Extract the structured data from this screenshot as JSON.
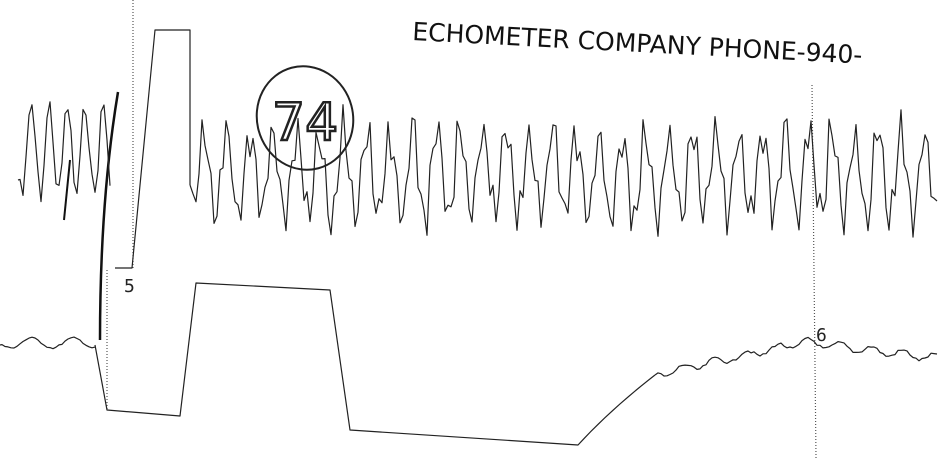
{
  "header": {
    "title": "ECHOMETER COMPANY PHONE-940-"
  },
  "annotation": {
    "handwritten": "74"
  },
  "markers": [
    {
      "label": "5"
    },
    {
      "label": "6"
    }
  ]
}
